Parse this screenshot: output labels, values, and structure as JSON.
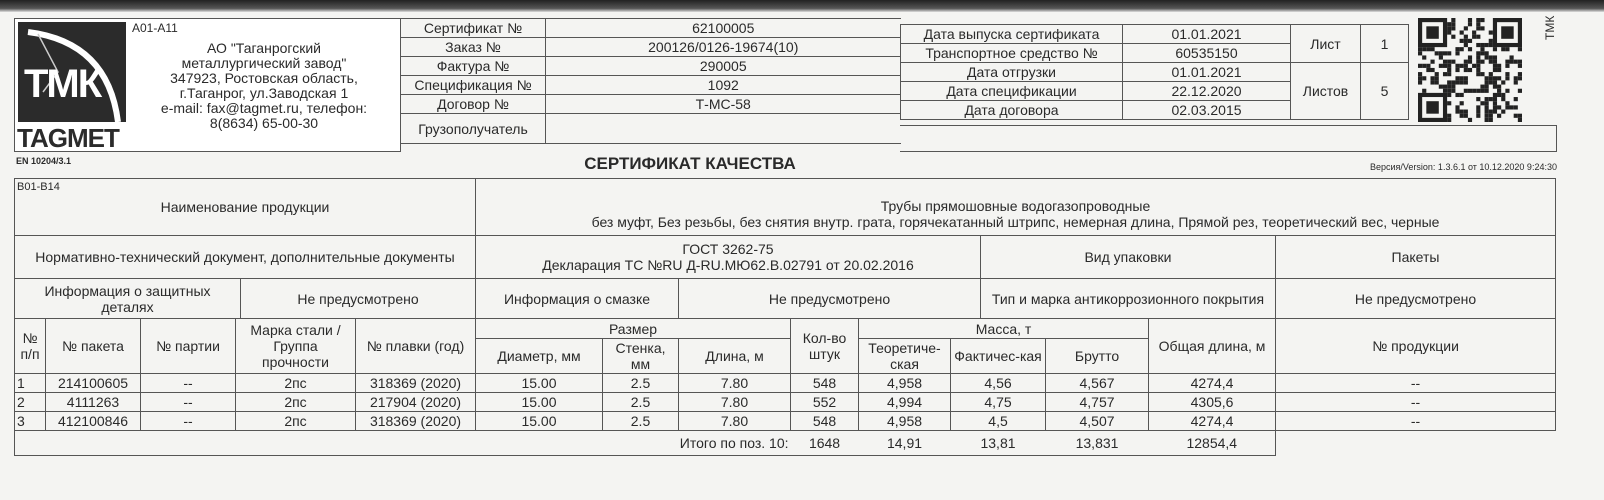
{
  "header": {
    "company_code": "A01-A11",
    "logo_text": "TAGMET",
    "logo_mark": "ТМК",
    "company_lines": [
      "АО \"Таганрогский",
      "металлургический завод\"",
      "347923, Ростовская область,",
      "г.Таганрог, ул.Заводская 1",
      "e-mail: fax@tagmet.ru, телефон:",
      "8(8634) 65-00-30"
    ],
    "fields": [
      {
        "label": "Сертификат №",
        "value": "62100005"
      },
      {
        "label": "Заказ №",
        "value": "200126/0126-19674(10)"
      },
      {
        "label": "Фактура №",
        "value": "290005"
      },
      {
        "label": "Спецификация №",
        "value": "1092"
      },
      {
        "label": "Договор №",
        "value": "Т-МС-58"
      },
      {
        "label": "Грузополучатель",
        "value": ""
      }
    ],
    "dates": [
      {
        "label": "Дата выпуска сертификата",
        "value": "01.01.2021"
      },
      {
        "label": "Транспортное средство №",
        "value": "60535150"
      },
      {
        "label": "Дата отгрузки",
        "value": "01.01.2021"
      },
      {
        "label": "Дата спецификации",
        "value": "22.12.2020"
      },
      {
        "label": "Дата договора",
        "value": "02.03.2015"
      }
    ],
    "sheet_label": "Лист",
    "sheet": "1",
    "sheets_label": "Листов",
    "sheets": "5",
    "side_text": "ТМК",
    "standard": "EN 10204/3.1",
    "title": "СЕРТИФИКАТ КАЧЕСТВА",
    "version": "Версия/Version: 1.3.6.1 от 10.12.2020 9:24:30"
  },
  "info": {
    "section_code": "B01-B14",
    "product_name_label": "Наименование продукции",
    "product_name_1": "Трубы прямошовные водогазопроводные",
    "product_name_2": "без муфт, Без резьбы, без снятия внутр. грата, горячекатанный штрипс, немерная длина, Прямой рез, теоретический вес, черные",
    "normative_label": "Нормативно-технический документ, дополнительные документы",
    "normative_1": "ГОСТ 3262-75",
    "normative_2": "Декларация ТС №RU Д-RU.МЮ62.В.02791 от 20.02.2016",
    "packaging_label": "Вид упаковки",
    "packages_label": "Пакеты",
    "protective_label": "Информация о защитных деталях",
    "protective_value": "Не предусмотрено",
    "lubrication_label": "Информация о смазке",
    "lubrication_value": "Не предусмотрено",
    "coating_label": "Тип и марка антикоррозионного покрытия",
    "coating_value": "Не предусмотрено"
  },
  "table": {
    "headers": {
      "no": "№ п/п",
      "package": "№ пакета",
      "batch": "№ партии",
      "steel": "Марка стали / Группа прочности",
      "heat": "№ плавки (год)",
      "size": "Размер",
      "diameter": "Диаметр, мм",
      "wall": "Стенка, мм",
      "length": "Длина, м",
      "qty": "Кол-во штук",
      "mass": "Масса, т",
      "theor": "Теоретиче-ская",
      "actual": "Фактичес-кая",
      "gross": "Брутто",
      "total_length": "Общая длина, м",
      "product_no": "№ продукции"
    },
    "rows": [
      {
        "no": "1",
        "package": "214100605",
        "batch": "--",
        "steel": "2пс",
        "heat": "318369 (2020)",
        "diameter": "15.00",
        "wall": "2.5",
        "length": "7.80",
        "qty": "548",
        "theor": "4,958",
        "actual": "4,56",
        "gross": "4,567",
        "total_length": "4274,4",
        "product_no": "--"
      },
      {
        "no": "2",
        "package": "4111263",
        "batch": "--",
        "steel": "2пс",
        "heat": "217904 (2020)",
        "diameter": "15.00",
        "wall": "2.5",
        "length": "7.80",
        "qty": "552",
        "theor": "4,994",
        "actual": "4,75",
        "gross": "4,757",
        "total_length": "4305,6",
        "product_no": "--"
      },
      {
        "no": "3",
        "package": "412100846",
        "batch": "--",
        "steel": "2пс",
        "heat": "318369 (2020)",
        "diameter": "15.00",
        "wall": "2.5",
        "length": "7.80",
        "qty": "548",
        "theor": "4,958",
        "actual": "4,5",
        "gross": "4,507",
        "total_length": "4274,4",
        "product_no": "--"
      }
    ],
    "total": {
      "label": "Итого по поз. 10:",
      "qty": "1648",
      "theor": "14,91",
      "actual": "13,81",
      "gross": "13,831",
      "total_length": "12854,4"
    }
  }
}
